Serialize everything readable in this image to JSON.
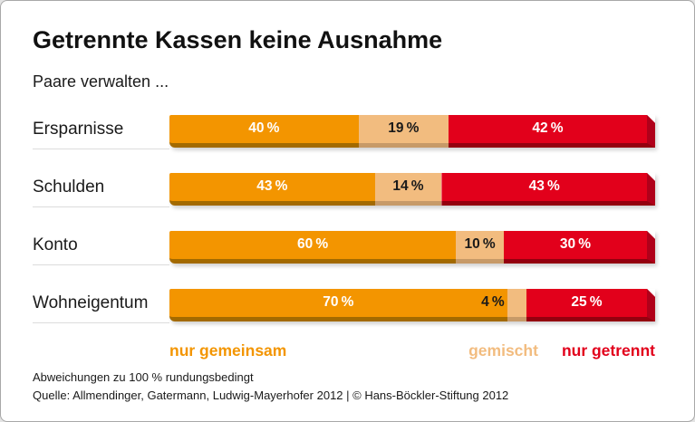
{
  "page": {
    "background": "#e3e3e3",
    "card_border": "#a8a8a8"
  },
  "header": {
    "title": "Getrennte Kassen keine Ausnahme",
    "subtitle": "Paare verwalten ..."
  },
  "footer": {
    "note": "Abweichungen zu 100 % rundungsbedingt",
    "source": "Quelle: Allmendinger, Gatermann, Ludwig-Mayerhofer 2012 | © Hans-Böckler-Stiftung 2012"
  },
  "chart_data": {
    "type": "bar",
    "stacked": true,
    "orientation": "horizontal",
    "title": "Getrennte Kassen keine Ausnahme",
    "subtitle": "Paare verwalten ...",
    "categories": [
      "Ersparnisse",
      "Schulden",
      "Konto",
      "Wohneigentum"
    ],
    "series": [
      {
        "name": "nur gemeinsam",
        "color": "#F39500",
        "shade": "#A36A00",
        "text_color": "#ffffff",
        "values": [
          40,
          43,
          60,
          70
        ]
      },
      {
        "name": "gemischt",
        "color": "#F2BC7F",
        "shade": "#C79A68",
        "text_color": "#1a1a1a",
        "values": [
          19,
          14,
          10,
          4
        ]
      },
      {
        "name": "nur getrennt",
        "color": "#E2001B",
        "shade": "#94000F",
        "bevel": "#B0001A",
        "text_color": "#ffffff",
        "values": [
          42,
          43,
          30,
          25
        ]
      }
    ],
    "value_suffix": " %",
    "unit": "percent",
    "xlim": [
      0,
      100
    ],
    "grid": false,
    "legend_position": "bottom",
    "outside_label_threshold": 8,
    "note": "Abweichungen zu 100 % rundungsbedingt"
  }
}
